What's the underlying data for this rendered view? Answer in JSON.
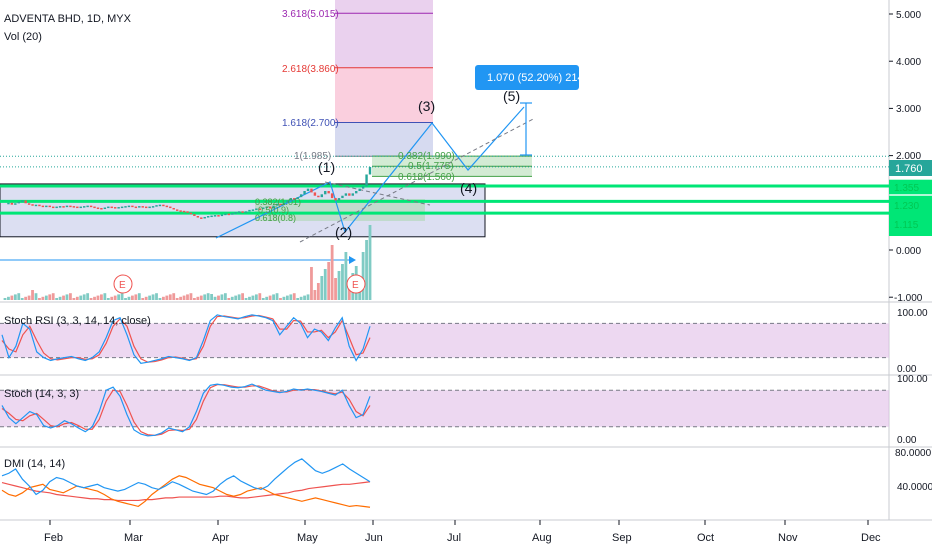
{
  "header": {
    "symbol_line": "ADVENTA BHD, 1D, MYX",
    "vol_label": "Vol (20)"
  },
  "price_axis": {
    "ticks": [
      "5.000",
      "4.000",
      "3.000",
      "2.000",
      "1.000",
      "0.000",
      "-1.000"
    ],
    "current_price": "1.760",
    "hidden_labels": [
      "1.355",
      "1.230",
      "1.115"
    ]
  },
  "fib_extension": {
    "levels": [
      {
        "label": "3.618(5.015)",
        "color": "#9c27b0"
      },
      {
        "label": "2.618(3.860)",
        "color": "#e53935"
      },
      {
        "label": "1.618(2.700)",
        "color": "#3f51b5"
      },
      {
        "label": "1(1.985)",
        "color": "#787b86"
      }
    ]
  },
  "fib_retracement": {
    "levels": [
      "0.382(1.990)",
      "0.5(1.775)",
      "0.618(1.560)"
    ],
    "small_levels": [
      "0.382(1.01)",
      "0.5(0.9)",
      "0.618(0.8)"
    ]
  },
  "elliott": {
    "labels": [
      "(1)",
      "(2)",
      "(3)",
      "(4)",
      "(5)"
    ]
  },
  "target_box": {
    "text": "1.070 (52.20%) 214"
  },
  "earnings_marker": {
    "label": "E"
  },
  "stoch_rsi": {
    "title": "Stoch RSI (3, 3, 14, 14, close)",
    "ticks": [
      "100.00",
      "0.00"
    ]
  },
  "stoch": {
    "title": "Stoch (14, 3, 3)",
    "ticks": [
      "100.00",
      "0.00"
    ]
  },
  "dmi": {
    "title": "DMI (14, 14)",
    "ticks": [
      "80.0000",
      "40.0000"
    ]
  },
  "time_axis": {
    "months": [
      "Feb",
      "Mar",
      "Apr",
      "May",
      "Jun",
      "Jul",
      "Aug",
      "Sep",
      "Oct",
      "Nov",
      "Dec"
    ]
  },
  "colors": {
    "up": "#26a69a",
    "down": "#ef5350",
    "blue": "#2196f3",
    "orange": "#ff6d00",
    "green_line": "#00e676",
    "band": "#e1bee7",
    "accent": "#2196f3"
  },
  "chart_data": {
    "type": "line",
    "instrument": "ADVENTA BHD, 1D, MYX",
    "months": [
      "Feb",
      "Mar",
      "Apr",
      "May",
      "Jun",
      "Jul",
      "Aug",
      "Sep",
      "Oct",
      "Nov",
      "Dec"
    ],
    "y_ticks": [
      5.0,
      4.0,
      3.0,
      2.0,
      1.0,
      0.0,
      -1.0
    ],
    "ylim": [
      -1.0,
      5.4
    ],
    "price": [
      0.98,
      1.0,
      0.96,
      0.99,
      1.02,
      1.05,
      0.99,
      0.97,
      0.95,
      0.96,
      0.94,
      0.93,
      0.94,
      0.92,
      0.9,
      0.92,
      0.93,
      0.92,
      0.94,
      0.93,
      0.92,
      0.91,
      0.92,
      0.93,
      0.94,
      0.92,
      0.9,
      0.89,
      0.88,
      0.9,
      0.92,
      0.91,
      0.9,
      0.91,
      0.92,
      0.93,
      0.94,
      0.92,
      0.91,
      0.93,
      0.92,
      0.9,
      0.92,
      0.93,
      0.95,
      0.96,
      0.94,
      0.92,
      0.89,
      0.86,
      0.84,
      0.83,
      0.82,
      0.79,
      0.76,
      0.72,
      0.69,
      0.68,
      0.7,
      0.72,
      0.73,
      0.74,
      0.73,
      0.75,
      0.77,
      0.76,
      0.78,
      0.8,
      0.82,
      0.8,
      0.82,
      0.85,
      0.86,
      0.88,
      0.87,
      0.9,
      0.92,
      0.88,
      0.94,
      0.98,
      0.96,
      1.0,
      1.05,
      1.1,
      1.08,
      1.12,
      1.18,
      1.25,
      1.3,
      1.22,
      1.15,
      1.12,
      1.18,
      1.25,
      1.2,
      1.1,
      1.05,
      1.1,
      1.15,
      1.2,
      1.15,
      1.2,
      1.25,
      1.3,
      1.35,
      1.6,
      1.76
    ],
    "current": 1.76,
    "stoch_rsi": {
      "k": [
        60,
        20,
        40,
        80,
        70,
        30,
        20,
        15,
        18,
        20,
        22,
        18,
        15,
        20,
        30,
        55,
        85,
        90,
        60,
        25,
        10,
        12,
        15,
        18,
        22,
        20,
        18,
        15,
        20,
        50,
        85,
        95,
        92,
        90,
        88,
        92,
        95,
        93,
        90,
        85,
        60,
        75,
        90,
        80,
        55,
        70,
        65,
        50,
        72,
        90,
        40,
        15,
        35,
        75
      ],
      "d": [
        50,
        35,
        30,
        60,
        75,
        50,
        28,
        18,
        16,
        18,
        20,
        20,
        17,
        18,
        25,
        45,
        75,
        88,
        75,
        40,
        18,
        12,
        13,
        16,
        20,
        21,
        19,
        16,
        18,
        40,
        75,
        92,
        93,
        91,
        89,
        90,
        93,
        94,
        91,
        88,
        70,
        70,
        85,
        84,
        65,
        65,
        68,
        55,
        65,
        85,
        55,
        25,
        28,
        55
      ],
      "upper": 80,
      "lower": 20
    },
    "stoch": {
      "k": [
        55,
        35,
        25,
        35,
        45,
        40,
        22,
        18,
        22,
        30,
        25,
        18,
        12,
        20,
        45,
        80,
        85,
        70,
        40,
        15,
        8,
        5,
        6,
        10,
        18,
        15,
        12,
        20,
        45,
        75,
        88,
        90,
        88,
        85,
        84,
        86,
        90,
        85,
        80,
        78,
        76,
        78,
        82,
        80,
        82,
        80,
        78,
        75,
        72,
        80,
        55,
        35,
        40,
        70
      ],
      "d": [
        50,
        42,
        32,
        30,
        38,
        42,
        32,
        22,
        20,
        25,
        27,
        22,
        16,
        16,
        32,
        62,
        80,
        78,
        55,
        28,
        12,
        7,
        6,
        8,
        14,
        15,
        14,
        16,
        32,
        62,
        84,
        89,
        89,
        87,
        85,
        85,
        87,
        87,
        83,
        79,
        77,
        77,
        80,
        81,
        81,
        81,
        79,
        76,
        74,
        77,
        65,
        45,
        38,
        55
      ],
      "upper": 80,
      "lower": 20
    },
    "dmi": {
      "plus": [
        52,
        55,
        60,
        48,
        40,
        30,
        35,
        45,
        50,
        48,
        44,
        40,
        38,
        40,
        42,
        38,
        36,
        34,
        36,
        40,
        44,
        42,
        38,
        36,
        40,
        45,
        42,
        38,
        34,
        32,
        30,
        34,
        42,
        48,
        52,
        46,
        42,
        38,
        36,
        40,
        48,
        55,
        62,
        68,
        72,
        65,
        58,
        55,
        58,
        62,
        66,
        60,
        55,
        50,
        45
      ],
      "minus": [
        35,
        30,
        28,
        32,
        38,
        40,
        42,
        36,
        34,
        32,
        36,
        40,
        38,
        36,
        34,
        30,
        25,
        22,
        20,
        18,
        16,
        22,
        30,
        36,
        42,
        48,
        52,
        50,
        46,
        42,
        40,
        38,
        34,
        30,
        28,
        30,
        34,
        36,
        38,
        34,
        30,
        28,
        26,
        24,
        22,
        24,
        26,
        24,
        22,
        20,
        18,
        16,
        17,
        16,
        15
      ],
      "adx": [
        44,
        42,
        40,
        38,
        36,
        34,
        33,
        32,
        30,
        29,
        28,
        27,
        26,
        25,
        25,
        24,
        24,
        23,
        23,
        23,
        23,
        24,
        24,
        25,
        26,
        26,
        27,
        27,
        27,
        27,
        27,
        27,
        28,
        28,
        27,
        26,
        26,
        27,
        28,
        29,
        30,
        31,
        32,
        34,
        35,
        37,
        38,
        39,
        40,
        41,
        42,
        42,
        43,
        44,
        45
      ],
      "ticks": [
        80,
        40
      ]
    }
  }
}
